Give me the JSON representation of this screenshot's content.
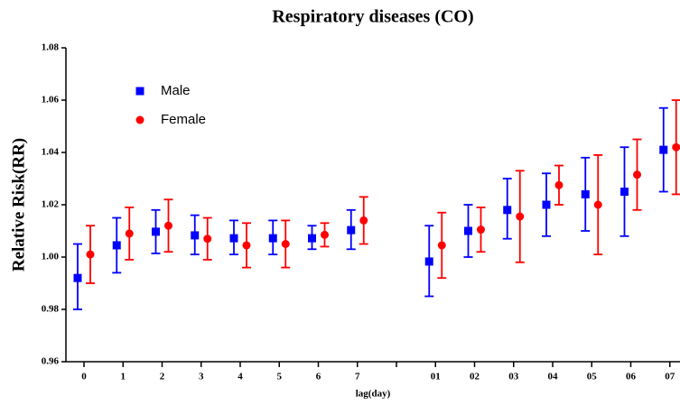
{
  "chart_data": {
    "type": "errorbar",
    "title": "Respiratory diseases (CO)",
    "x_label": "lag(day)",
    "y_label": "Relative Risk(RR)",
    "categories": [
      "0",
      "1",
      "2",
      "3",
      "4",
      "5",
      "6",
      "7",
      null,
      "01",
      "02",
      "03",
      "04",
      "05",
      "06",
      "07"
    ],
    "series": [
      {
        "name": "Male",
        "color": "#0000ff",
        "marker": "square",
        "values": [
          0.992,
          1.0045,
          1.0097,
          1.0083,
          1.0072,
          1.0072,
          1.0072,
          1.0103,
          null,
          0.9983,
          1.01,
          1.018,
          1.02,
          1.024,
          1.025,
          1.041
        ],
        "lower": [
          0.98,
          0.994,
          1.0014,
          1.001,
          1.001,
          1.001,
          1.003,
          1.003,
          null,
          0.985,
          1.0,
          1.007,
          1.008,
          1.01,
          1.008,
          1.025
        ],
        "upper": [
          1.005,
          1.015,
          1.018,
          1.016,
          1.014,
          1.014,
          1.012,
          1.018,
          null,
          1.012,
          1.02,
          1.03,
          1.032,
          1.038,
          1.042,
          1.057
        ]
      },
      {
        "name": "Female",
        "color": "#ff0000",
        "marker": "circle",
        "values": [
          1.001,
          1.009,
          1.012,
          1.007,
          1.0045,
          1.005,
          1.0085,
          1.014,
          null,
          1.0045,
          1.0105,
          1.0155,
          1.0275,
          1.02,
          1.0315,
          1.042
        ],
        "lower": [
          0.99,
          0.999,
          1.002,
          0.999,
          0.996,
          0.996,
          1.004,
          1.005,
          null,
          0.992,
          1.002,
          0.998,
          1.02,
          1.001,
          1.018,
          1.024
        ],
        "upper": [
          1.012,
          1.019,
          1.022,
          1.015,
          1.013,
          1.014,
          1.013,
          1.023,
          null,
          1.017,
          1.019,
          1.033,
          1.035,
          1.039,
          1.045,
          1.06
        ]
      }
    ],
    "ylim": [
      0.96,
      1.08
    ],
    "yticks": [
      0.96,
      0.98,
      {
        "value": 1.0,
        "label": "1.00"
      },
      1.02,
      1.04,
      1.06,
      1.08
    ],
    "legend": "upper left"
  }
}
